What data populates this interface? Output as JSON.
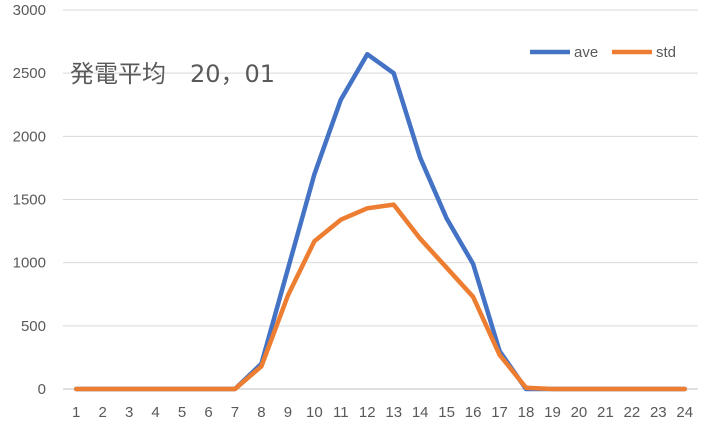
{
  "chart_data": {
    "type": "line",
    "title": "",
    "annotation": "発電平均　20，01",
    "xlabel": "",
    "ylabel": "",
    "ylim": [
      0,
      3000
    ],
    "yticks": [
      0,
      500,
      1000,
      1500,
      2000,
      2500,
      3000
    ],
    "grid": true,
    "legend_position": "top-right",
    "categories": [
      "1",
      "2",
      "3",
      "4",
      "5",
      "6",
      "7",
      "8",
      "9",
      "10",
      "11",
      "12",
      "13",
      "14",
      "15",
      "16",
      "17",
      "18",
      "19",
      "20",
      "21",
      "22",
      "23",
      "24"
    ],
    "series": [
      {
        "name": "ave",
        "color": "#4472C4",
        "values": [
          0,
          0,
          0,
          0,
          0,
          0,
          0,
          200,
          950,
          1700,
          2290,
          2650,
          2500,
          1830,
          1350,
          990,
          300,
          0,
          0,
          0,
          0,
          0,
          0,
          0
        ]
      },
      {
        "name": "std",
        "color": "#ED7D31",
        "values": [
          0,
          0,
          0,
          0,
          0,
          0,
          0,
          180,
          740,
          1170,
          1340,
          1430,
          1460,
          1190,
          960,
          730,
          270,
          10,
          0,
          0,
          0,
          0,
          0,
          0
        ]
      }
    ]
  }
}
